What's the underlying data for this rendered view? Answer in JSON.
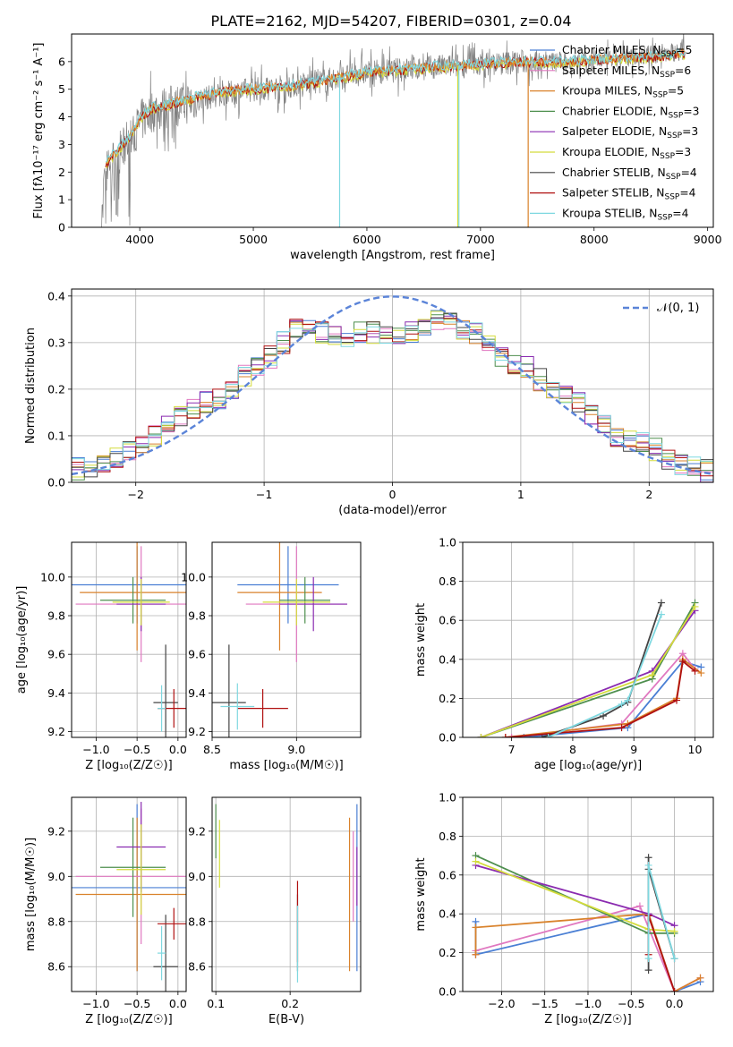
{
  "figure_title": "PLATE=2162, MJD=54207, FIBERID=0301, z=0.04",
  "colors": {
    "chabrier_miles": "#4a7fd4",
    "salpeter_miles": "#e078c0",
    "kroupa_miles": "#d9822b",
    "chabrier_elodie": "#4e8f4e",
    "salpeter_elodie": "#8a2bb0",
    "kroupa_elodie": "#d4dc3c",
    "chabrier_stelib": "#444444",
    "salpeter_stelib": "#b01010",
    "kroupa_stelib": "#7fd8e0",
    "data": "#808080",
    "gaussian": "#5b84d8"
  },
  "chart_data": [
    {
      "id": "spectrum",
      "type": "line",
      "title": "PLATE=2162, MJD=54207, FIBERID=0301, z=0.04",
      "xlabel": "wavelength [Angstrom, rest frame]",
      "ylabel": "Flux [fλ10⁻¹⁷ erg cm⁻² s⁻¹ A⁻¹]",
      "xlim": [
        3400,
        9050
      ],
      "ylim": [
        0,
        7.0
      ],
      "xticks": [
        4000,
        5000,
        6000,
        7000,
        8000,
        9000
      ],
      "yticks": [
        0,
        1,
        2,
        3,
        4,
        5,
        6
      ],
      "legend": {
        "placement": "top-right",
        "entries": [
          {
            "name": "Chabrier MILES, N",
            "sub": "SSP",
            "suffix": "=5",
            "color_key": "chabrier_miles"
          },
          {
            "name": "Salpeter MILES, N",
            "sub": "SSP",
            "suffix": "=6",
            "color_key": "salpeter_miles"
          },
          {
            "name": "Kroupa MILES, N",
            "sub": "SSP",
            "suffix": "=5",
            "color_key": "kroupa_miles"
          },
          {
            "name": "Chabrier ELODIE, N",
            "sub": "SSP",
            "suffix": "=3",
            "color_key": "chabrier_elodie"
          },
          {
            "name": "Salpeter ELODIE, N",
            "sub": "SSP",
            "suffix": "=3",
            "color_key": "salpeter_elodie"
          },
          {
            "name": "Kroupa ELODIE, N",
            "sub": "SSP",
            "suffix": "=3",
            "color_key": "kroupa_elodie"
          },
          {
            "name": "Chabrier STELIB, N",
            "sub": "SSP",
            "suffix": "=4",
            "color_key": "chabrier_stelib"
          },
          {
            "name": "Salpeter STELIB, N",
            "sub": "SSP",
            "suffix": "=4",
            "color_key": "salpeter_stelib"
          },
          {
            "name": "Kroupa STELIB, N",
            "sub": "SSP",
            "suffix": "=4",
            "color_key": "kroupa_stelib"
          }
        ]
      },
      "model_continuum": [
        [
          3700,
          2.3
        ],
        [
          3800,
          2.8
        ],
        [
          3900,
          3.2
        ],
        [
          4000,
          3.9
        ],
        [
          4100,
          4.3
        ],
        [
          4300,
          4.5
        ],
        [
          4500,
          4.7
        ],
        [
          4700,
          4.9
        ],
        [
          5000,
          5.0
        ],
        [
          5300,
          5.1
        ],
        [
          5600,
          5.3
        ],
        [
          6000,
          5.6
        ],
        [
          6300,
          5.7
        ],
        [
          6600,
          5.8
        ],
        [
          7000,
          5.9
        ],
        [
          7400,
          6.0
        ],
        [
          7800,
          6.0
        ],
        [
          8200,
          6.1
        ],
        [
          8600,
          6.2
        ],
        [
          8800,
          6.3
        ]
      ],
      "data_continuum": [
        [
          3660,
          0.0
        ],
        [
          3700,
          2.0
        ],
        [
          3800,
          2.6
        ],
        [
          3900,
          3.0
        ],
        [
          4000,
          3.8
        ],
        [
          4100,
          4.2
        ],
        [
          4300,
          4.4
        ],
        [
          4500,
          4.6
        ],
        [
          4700,
          4.8
        ],
        [
          5000,
          5.0
        ],
        [
          5300,
          5.1
        ],
        [
          5600,
          5.3
        ],
        [
          6000,
          5.6
        ],
        [
          6300,
          5.7
        ],
        [
          6600,
          5.8
        ],
        [
          7000,
          5.9
        ],
        [
          7400,
          6.0
        ],
        [
          7800,
          6.0
        ],
        [
          8200,
          6.1
        ],
        [
          8600,
          6.3
        ],
        [
          8800,
          6.4
        ]
      ],
      "model_dropouts": [
        {
          "x": 5760,
          "color_key": "kroupa_stelib"
        },
        {
          "x": 6800,
          "color_key": "kroupa_elodie"
        },
        {
          "x": 6810,
          "color_key": "kroupa_stelib"
        },
        {
          "x": 7420,
          "color_key": "kroupa_miles"
        }
      ]
    },
    {
      "id": "residual_histogram",
      "type": "histogram",
      "xlabel": "(data-model)/error",
      "ylabel": "Normed distribution",
      "xlim": [
        -2.5,
        2.5
      ],
      "ylim": [
        0,
        0.415
      ],
      "xticks": [
        -2,
        -1,
        0,
        1,
        2
      ],
      "yticks": [
        0.0,
        0.1,
        0.2,
        0.3,
        0.4
      ],
      "bin_width": 0.1,
      "legend": {
        "placement": "top-right",
        "entries": [
          {
            "name": "𝒩(0, 1)",
            "color_key": "gaussian",
            "style": "dashed"
          }
        ]
      },
      "bin_centers": [
        -2.45,
        -2.35,
        -2.25,
        -2.15,
        -2.05,
        -1.95,
        -1.85,
        -1.75,
        -1.65,
        -1.55,
        -1.45,
        -1.35,
        -1.25,
        -1.15,
        -1.05,
        -0.95,
        -0.85,
        -0.75,
        -0.65,
        -0.55,
        -0.45,
        -0.35,
        -0.25,
        -0.15,
        -0.05,
        0.05,
        0.15,
        0.25,
        0.35,
        0.45,
        0.55,
        0.65,
        0.75,
        0.85,
        0.95,
        1.05,
        1.15,
        1.25,
        1.35,
        1.45,
        1.55,
        1.65,
        1.75,
        1.85,
        1.95,
        2.05,
        2.15,
        2.25,
        2.35,
        2.45
      ],
      "base_profile": [
        0.03,
        0.035,
        0.045,
        0.055,
        0.065,
        0.08,
        0.1,
        0.12,
        0.14,
        0.16,
        0.17,
        0.18,
        0.2,
        0.23,
        0.25,
        0.27,
        0.3,
        0.33,
        0.33,
        0.32,
        0.31,
        0.31,
        0.32,
        0.32,
        0.32,
        0.31,
        0.32,
        0.33,
        0.35,
        0.35,
        0.33,
        0.32,
        0.3,
        0.27,
        0.25,
        0.25,
        0.22,
        0.2,
        0.19,
        0.17,
        0.15,
        0.13,
        0.1,
        0.09,
        0.085,
        0.07,
        0.05,
        0.04,
        0.03,
        0.025
      ]
    },
    {
      "id": "age_vs_metallicity",
      "type": "errorbar",
      "xlabel": "Z [log₁₀(Z/Z☉)]",
      "ylabel": "age  [log₁₀(age/yr)]",
      "xlim": [
        -1.3,
        0.1
      ],
      "ylim": [
        9.17,
        10.18
      ],
      "xticks": [
        -1.0,
        -0.5,
        0.0
      ],
      "yticks": [
        9.2,
        9.4,
        9.6,
        9.8,
        10.0
      ],
      "points": [
        {
          "x": -0.5,
          "y": 9.96,
          "xerr": 0.8,
          "yerr": 0.2,
          "color_key": "chabrier_miles"
        },
        {
          "x": -0.5,
          "y": 9.92,
          "xerr": 0.7,
          "yerr": 0.3,
          "color_key": "kroupa_miles"
        },
        {
          "x": -0.45,
          "y": 9.86,
          "xerr": 0.8,
          "yerr": 0.3,
          "color_key": "salpeter_miles"
        },
        {
          "x": -0.55,
          "y": 9.88,
          "xerr": 0.4,
          "yerr": 0.12,
          "color_key": "chabrier_elodie"
        },
        {
          "x": -0.45,
          "y": 9.86,
          "xerr": 0.3,
          "yerr": 0.14,
          "color_key": "salpeter_elodie"
        },
        {
          "x": -0.45,
          "y": 9.87,
          "xerr": 0.35,
          "yerr": 0.12,
          "color_key": "kroupa_elodie"
        },
        {
          "x": -0.15,
          "y": 9.35,
          "xerr": 0.15,
          "yerr": 0.3,
          "color_key": "chabrier_stelib"
        },
        {
          "x": -0.05,
          "y": 9.32,
          "xerr": 0.2,
          "yerr": 0.1,
          "color_key": "salpeter_stelib"
        },
        {
          "x": -0.2,
          "y": 9.32,
          "xerr": 0.05,
          "yerr": 0.12,
          "color_key": "kroupa_stelib"
        }
      ]
    },
    {
      "id": "age_vs_mass",
      "type": "errorbar",
      "xlabel": "mass [log₁₀(M/M☉)]",
      "ylabel": "",
      "xlim": [
        8.5,
        9.38
      ],
      "ylim": [
        9.17,
        10.18
      ],
      "xticks": [
        8.5,
        9.0
      ],
      "yticks": [
        9.2,
        9.4,
        9.6,
        9.8,
        10.0
      ],
      "points": [
        {
          "x": 8.95,
          "y": 9.96,
          "xerr": 0.3,
          "yerr": 0.2,
          "color_key": "chabrier_miles"
        },
        {
          "x": 8.9,
          "y": 9.92,
          "xerr": 0.25,
          "yerr": 0.3,
          "color_key": "kroupa_miles"
        },
        {
          "x": 9.0,
          "y": 9.86,
          "xerr": 0.3,
          "yerr": 0.3,
          "color_key": "salpeter_miles"
        },
        {
          "x": 9.05,
          "y": 9.88,
          "xerr": 0.15,
          "yerr": 0.12,
          "color_key": "chabrier_elodie"
        },
        {
          "x": 9.1,
          "y": 9.86,
          "xerr": 0.2,
          "yerr": 0.14,
          "color_key": "salpeter_elodie"
        },
        {
          "x": 9.0,
          "y": 9.87,
          "xerr": 0.2,
          "yerr": 0.12,
          "color_key": "kroupa_elodie"
        },
        {
          "x": 8.6,
          "y": 9.35,
          "xerr": 0.1,
          "yerr": 0.3,
          "color_key": "chabrier_stelib"
        },
        {
          "x": 8.8,
          "y": 9.32,
          "xerr": 0.15,
          "yerr": 0.1,
          "color_key": "salpeter_stelib"
        },
        {
          "x": 8.65,
          "y": 9.33,
          "xerr": 0.1,
          "yerr": 0.12,
          "color_key": "kroupa_stelib"
        }
      ]
    },
    {
      "id": "mass_weight_vs_age",
      "type": "line",
      "xlabel": "age  [log₁₀(age/yr)]",
      "ylabel": "mass weight",
      "xlim": [
        6.2,
        10.3
      ],
      "ylim": [
        0,
        1.0
      ],
      "xticks": [
        7,
        8,
        9,
        10
      ],
      "yticks": [
        0.0,
        0.2,
        0.4,
        0.6,
        0.8,
        1.0
      ],
      "series": [
        {
          "color_key": "chabrier_miles",
          "x": [
            7.2,
            8.9,
            9.8,
            10.1
          ],
          "y": [
            0.0,
            0.05,
            0.39,
            0.36
          ]
        },
        {
          "color_key": "salpeter_miles",
          "x": [
            7.0,
            8.8,
            9.8,
            10.0
          ],
          "y": [
            0.0,
            0.07,
            0.43,
            0.35
          ]
        },
        {
          "color_key": "kroupa_miles",
          "x": [
            6.9,
            8.9,
            9.7,
            9.8,
            10.1
          ],
          "y": [
            0.0,
            0.07,
            0.2,
            0.4,
            0.33
          ]
        },
        {
          "color_key": "chabrier_elodie",
          "x": [
            6.5,
            9.3,
            10.0
          ],
          "y": [
            0.0,
            0.3,
            0.69
          ]
        },
        {
          "color_key": "salpeter_elodie",
          "x": [
            6.5,
            9.3,
            10.0
          ],
          "y": [
            0.0,
            0.34,
            0.65
          ]
        },
        {
          "color_key": "kroupa_elodie",
          "x": [
            6.5,
            9.3,
            10.0
          ],
          "y": [
            0.0,
            0.32,
            0.67
          ]
        },
        {
          "color_key": "chabrier_stelib",
          "x": [
            7.5,
            8.5,
            8.9,
            9.45
          ],
          "y": [
            0.0,
            0.11,
            0.18,
            0.69
          ]
        },
        {
          "color_key": "salpeter_stelib",
          "x": [
            6.9,
            8.8,
            9.7,
            9.8,
            10.0
          ],
          "y": [
            0.0,
            0.05,
            0.19,
            0.39,
            0.34
          ]
        },
        {
          "color_key": "kroupa_stelib",
          "x": [
            7.6,
            8.8,
            8.9,
            9.45
          ],
          "y": [
            0.0,
            0.17,
            0.19,
            0.63
          ]
        }
      ]
    },
    {
      "id": "mass_vs_metallicity",
      "type": "errorbar",
      "xlabel": "Z [log₁₀(Z/Z☉)]",
      "ylabel": "mass [log₁₀(M/M☉)]",
      "xlim": [
        -1.3,
        0.1
      ],
      "ylim": [
        8.49,
        9.35
      ],
      "xticks": [
        -1.0,
        -0.5,
        0.0
      ],
      "yticks": [
        8.6,
        8.8,
        9.0,
        9.2
      ],
      "points": [
        {
          "x": -0.5,
          "y": 8.95,
          "xerr": 0.8,
          "yerr": 0.37,
          "color_key": "chabrier_miles"
        },
        {
          "x": -0.5,
          "y": 8.92,
          "xerr": 0.75,
          "yerr": 0.34,
          "color_key": "kroupa_miles"
        },
        {
          "x": -0.45,
          "y": 9.0,
          "xerr": 0.8,
          "yerr": 0.3,
          "color_key": "salpeter_miles"
        },
        {
          "x": -0.55,
          "y": 9.04,
          "xerr": 0.4,
          "yerr": 0.22,
          "color_key": "chabrier_elodie"
        },
        {
          "x": -0.45,
          "y": 9.13,
          "xerr": 0.3,
          "yerr": 0.2,
          "color_key": "salpeter_elodie"
        },
        {
          "x": -0.45,
          "y": 9.03,
          "xerr": 0.3,
          "yerr": 0.2,
          "color_key": "kroupa_elodie"
        },
        {
          "x": -0.15,
          "y": 8.6,
          "xerr": 0.15,
          "yerr": 0.23,
          "color_key": "chabrier_stelib"
        },
        {
          "x": -0.05,
          "y": 8.79,
          "xerr": 0.2,
          "yerr": 0.07,
          "color_key": "salpeter_stelib"
        },
        {
          "x": -0.2,
          "y": 8.66,
          "xerr": 0.05,
          "yerr": 0.12,
          "color_key": "kroupa_stelib"
        }
      ]
    },
    {
      "id": "mass_vs_ebv",
      "type": "errorbar",
      "xlabel": "E(B-V)",
      "ylabel": "",
      "xlim": [
        0.095,
        0.295
      ],
      "ylim": [
        8.49,
        9.35
      ],
      "xticks": [
        0.1,
        0.2
      ],
      "yticks": [
        8.6,
        8.8,
        9.0,
        9.2
      ],
      "points": [
        {
          "x": 0.29,
          "y": 8.95,
          "xerr": 0.0,
          "yerr": 0.37,
          "color_key": "chabrier_miles"
        },
        {
          "x": 0.28,
          "y": 8.92,
          "xerr": 0.0,
          "yerr": 0.34,
          "color_key": "kroupa_miles"
        },
        {
          "x": 0.285,
          "y": 9.0,
          "xerr": 0.0,
          "yerr": 0.2,
          "color_key": "salpeter_miles"
        },
        {
          "x": 0.1,
          "y": 9.2,
          "xerr": 0.0,
          "yerr": 0.12,
          "color_key": "chabrier_elodie"
        },
        {
          "x": 0.29,
          "y": 9.0,
          "xerr": 0.0,
          "yerr": 0.13,
          "color_key": "salpeter_elodie"
        },
        {
          "x": 0.105,
          "y": 9.1,
          "xerr": 0.0,
          "yerr": 0.15,
          "color_key": "kroupa_elodie"
        },
        {
          "x": 0.21,
          "y": 8.75,
          "xerr": 0.0,
          "yerr": 0.17,
          "color_key": "chabrier_stelib"
        },
        {
          "x": 0.21,
          "y": 8.8,
          "xerr": 0.0,
          "yerr": 0.18,
          "color_key": "salpeter_stelib"
        },
        {
          "x": 0.21,
          "y": 8.7,
          "xerr": 0.0,
          "yerr": 0.17,
          "color_key": "kroupa_stelib"
        }
      ]
    },
    {
      "id": "mass_weight_vs_metallicity",
      "type": "line",
      "xlabel": "Z [log₁₀(Z/Z☉)]",
      "ylabel": "mass weight",
      "xlim": [
        -2.45,
        0.45
      ],
      "ylim": [
        0,
        1.0
      ],
      "xticks": [
        -2.0,
        -1.5,
        -1.0,
        -0.5,
        0.0
      ],
      "yticks": [
        0.0,
        0.2,
        0.4,
        0.6,
        0.8,
        1.0
      ],
      "series": [
        {
          "color_key": "chabrier_miles",
          "x": [
            -2.3,
            -2.3,
            -0.3,
            0.0,
            0.3
          ],
          "y": [
            0.36,
            0.19,
            0.4,
            0.0,
            0.05
          ]
        },
        {
          "color_key": "salpeter_miles",
          "x": [
            -2.3,
            -2.3,
            -0.4,
            0.0,
            0.3
          ],
          "y": [
            0.19,
            0.21,
            0.44,
            0.0,
            0.07
          ]
        },
        {
          "color_key": "kroupa_miles",
          "x": [
            -2.3,
            -2.3,
            -0.3,
            0.0,
            0.3
          ],
          "y": [
            0.19,
            0.33,
            0.4,
            0.0,
            0.07
          ]
        },
        {
          "color_key": "chabrier_elodie",
          "x": [
            -2.3,
            -0.3,
            0.0
          ],
          "y": [
            0.7,
            0.3,
            0.3
          ]
        },
        {
          "color_key": "salpeter_elodie",
          "x": [
            -2.3,
            -0.3,
            0.0
          ],
          "y": [
            0.65,
            0.4,
            0.34
          ]
        },
        {
          "color_key": "kroupa_elodie",
          "x": [
            -2.3,
            -0.3,
            0.0
          ],
          "y": [
            0.67,
            0.32,
            0.31
          ]
        },
        {
          "color_key": "chabrier_stelib",
          "x": [
            -0.3,
            -0.3,
            -0.3,
            0.0
          ],
          "y": [
            0.11,
            0.69,
            0.63,
            0.17
          ]
        },
        {
          "color_key": "salpeter_stelib",
          "x": [
            -0.3,
            -0.3,
            0.0
          ],
          "y": [
            0.19,
            0.39,
            0.0
          ]
        },
        {
          "color_key": "kroupa_stelib",
          "x": [
            -0.3,
            -0.3,
            0.0
          ],
          "y": [
            0.17,
            0.65,
            0.17
          ]
        }
      ]
    }
  ]
}
